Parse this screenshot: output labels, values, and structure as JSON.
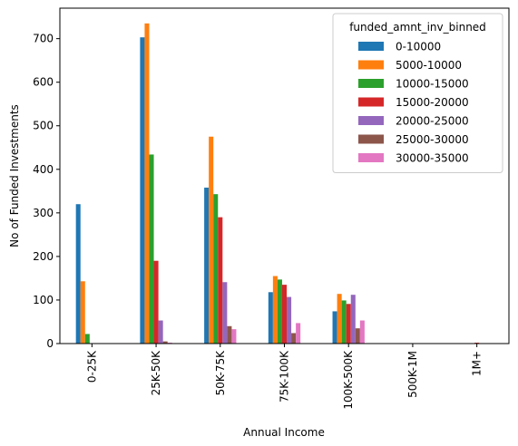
{
  "chart_data": {
    "type": "bar",
    "title": "",
    "xlabel": "Annual Income",
    "ylabel": "No of Funded Investments",
    "ylim": [
      0,
      770
    ],
    "yticks": [
      0,
      100,
      200,
      300,
      400,
      500,
      600,
      700
    ],
    "categories": [
      "0-25K",
      "25K-50K",
      "50K-75K",
      "75K-100K",
      "100K-500K",
      "500K-1M",
      "1M+"
    ],
    "legend": {
      "title": "funded_amnt_inv_binned",
      "placement": "top-right"
    },
    "grid": false,
    "series": [
      {
        "name": "0-10000",
        "color": "#1f77b4",
        "values": [
          320,
          703,
          358,
          118,
          74,
          1,
          0
        ]
      },
      {
        "name": "5000-10000",
        "color": "#ff7f0e",
        "values": [
          143,
          735,
          475,
          155,
          114,
          1,
          0
        ]
      },
      {
        "name": "10000-15000",
        "color": "#2ca02c",
        "values": [
          22,
          434,
          343,
          147,
          99,
          1,
          0
        ]
      },
      {
        "name": "15000-20000",
        "color": "#d62728",
        "values": [
          0,
          190,
          290,
          135,
          91,
          1,
          2
        ]
      },
      {
        "name": "20000-25000",
        "color": "#9467bd",
        "values": [
          0,
          53,
          141,
          107,
          112,
          1,
          0
        ]
      },
      {
        "name": "25000-30000",
        "color": "#8c564b",
        "values": [
          0,
          5,
          40,
          24,
          35,
          1,
          0
        ]
      },
      {
        "name": "30000-35000",
        "color": "#e377c2",
        "values": [
          0,
          2,
          33,
          47,
          53,
          1,
          0
        ]
      }
    ]
  }
}
